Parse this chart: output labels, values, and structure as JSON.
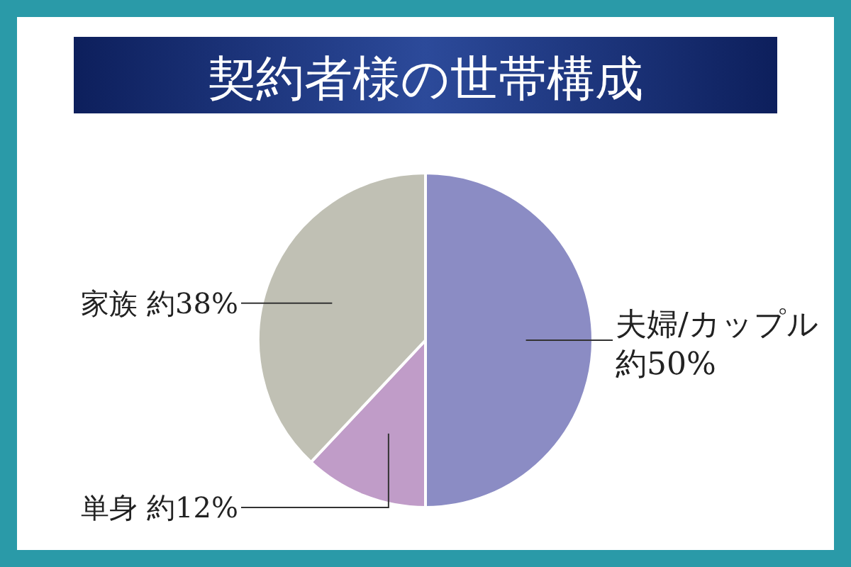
{
  "chart_data": {
    "type": "pie",
    "title": "契約者様の世帯構成",
    "categories": [
      "夫婦/カップル",
      "単身",
      "家族"
    ],
    "values": [
      50,
      12,
      38
    ],
    "colors": [
      "#8b8cc4",
      "#c09cc8",
      "#c0c0b4"
    ],
    "value_labels": [
      "約50%",
      "約12%",
      "約38%"
    ]
  }
}
